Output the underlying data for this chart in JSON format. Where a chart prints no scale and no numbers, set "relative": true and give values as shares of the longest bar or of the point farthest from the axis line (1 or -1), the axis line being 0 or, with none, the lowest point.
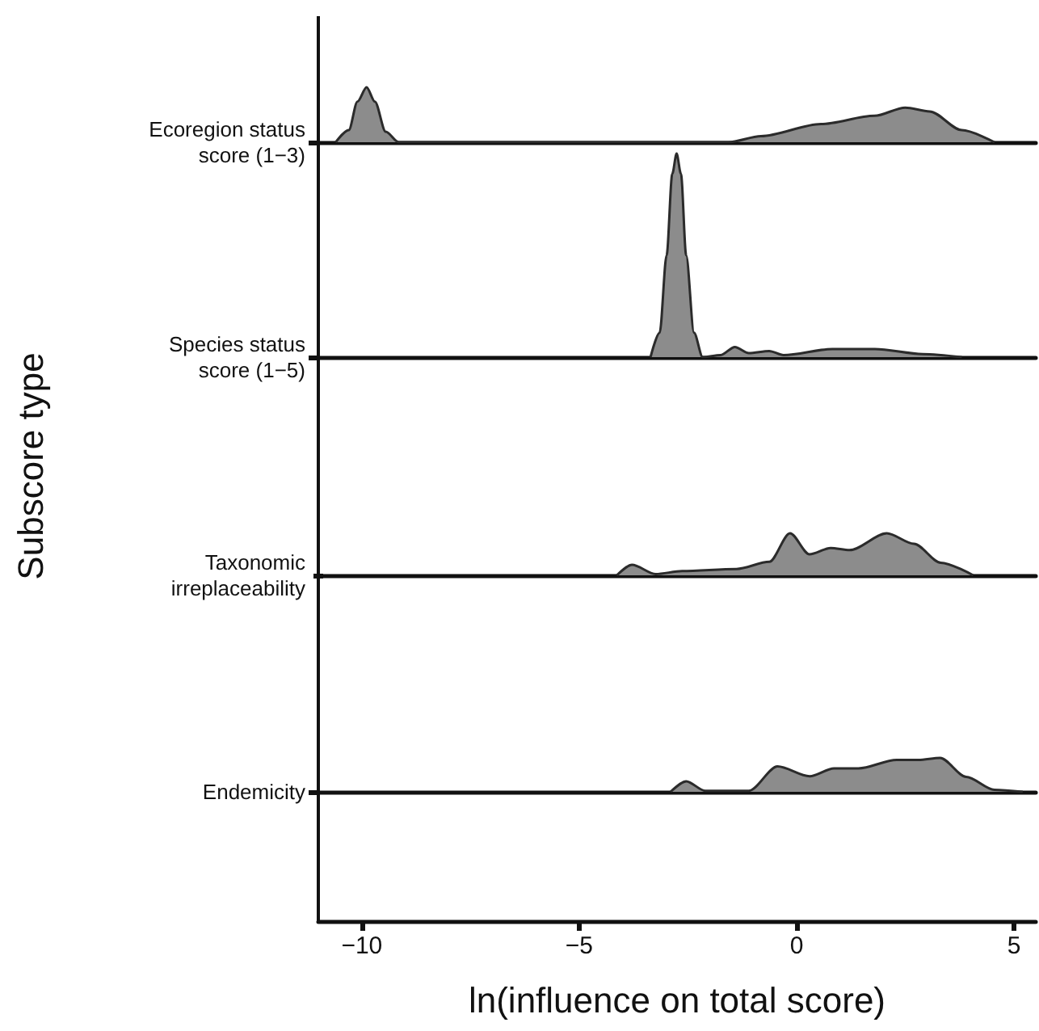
{
  "chart_data": [
    {
      "type": "area",
      "relative": true,
      "xlim": [
        -11,
        5.5
      ],
      "tick_labels": false,
      "grid": false,
      "legend": false,
      "marker": "none",
      "line_style": "solid",
      "series": [
        {
          "name": "Ecoregion status\nscore (1−3)",
          "color": "#8c8c8c",
          "x": [
            -10.6,
            -10.3,
            -10.1,
            -9.89,
            -9.7,
            -9.45,
            -9.15,
            -1.57,
            -0.82,
            0.56,
            1.79,
            2.5,
            3.06,
            3.8,
            4.55
          ],
          "values": [
            0,
            0.22,
            0.74,
            1,
            0.74,
            0.19,
            0,
            0,
            0.11,
            0.33,
            0.48,
            0.63,
            0.56,
            0.22,
            0
          ]
        }
      ]
    },
    {
      "type": "area",
      "relative": true,
      "xlim": [
        -11,
        5.5
      ],
      "tick_labels": false,
      "grid": false,
      "legend": false,
      "marker": "none",
      "line_style": "solid",
      "series": [
        {
          "name": "Species status\nscore (1−5)",
          "color": "#8c8c8c",
          "x": [
            -3.36,
            -3.15,
            -2.99,
            -2.86,
            -2.76,
            -2.66,
            -2.54,
            -2.36,
            -2.16,
            -1.75,
            -1.42,
            -1.1,
            -0.63,
            -0.3,
            0.82,
            1.8,
            2.9,
            3.8
          ],
          "values": [
            0,
            0.12,
            0.5,
            0.9,
            1,
            0.9,
            0.5,
            0.12,
            0,
            0.01,
            0.05,
            0.02,
            0.03,
            0.01,
            0.04,
            0.04,
            0.015,
            0
          ]
        }
      ]
    },
    {
      "type": "area",
      "relative": true,
      "ylabel": "Subscore type",
      "xlim": [
        -11,
        5.5
      ],
      "tick_labels": false,
      "grid": false,
      "legend": false,
      "marker": "none",
      "line_style": "solid",
      "series": [
        {
          "name": "Taxonomic\nirreplaceability",
          "color": "#8c8c8c",
          "x": [
            -4.2,
            -3.85,
            -3.3,
            -2.69,
            -1.43,
            -0.67,
            -0.19,
            0.26,
            0.75,
            1.19,
            2.05,
            2.68,
            3.3,
            4.05
          ],
          "values": [
            0,
            0.25,
            0.03,
            0.1,
            0.15,
            0.32,
            1,
            0.5,
            0.65,
            0.6,
            1,
            0.75,
            0.3,
            0
          ]
        }
      ]
    },
    {
      "type": "area",
      "relative": true,
      "xlabel": "ln(influence on total score)",
      "xlim": [
        -11,
        5.5
      ],
      "xticks": [
        -10,
        -5,
        0,
        5
      ],
      "tick_labels": "x",
      "grid": false,
      "legend": false,
      "marker": "none",
      "line_style": "solid",
      "series": [
        {
          "name": "Endemicity",
          "color": "#8c8c8c",
          "x": [
            -2.9,
            -2.54,
            -2.1,
            -1.1,
            -0.44,
            0.3,
            0.86,
            1.42,
            2.3,
            2.8,
            3.3,
            3.9,
            4.55,
            5.2
          ],
          "values": [
            0,
            0.31,
            0.03,
            0.03,
            0.75,
            0.46,
            0.69,
            0.69,
            0.94,
            0.94,
            1,
            0.44,
            0.06,
            0
          ]
        }
      ]
    }
  ]
}
